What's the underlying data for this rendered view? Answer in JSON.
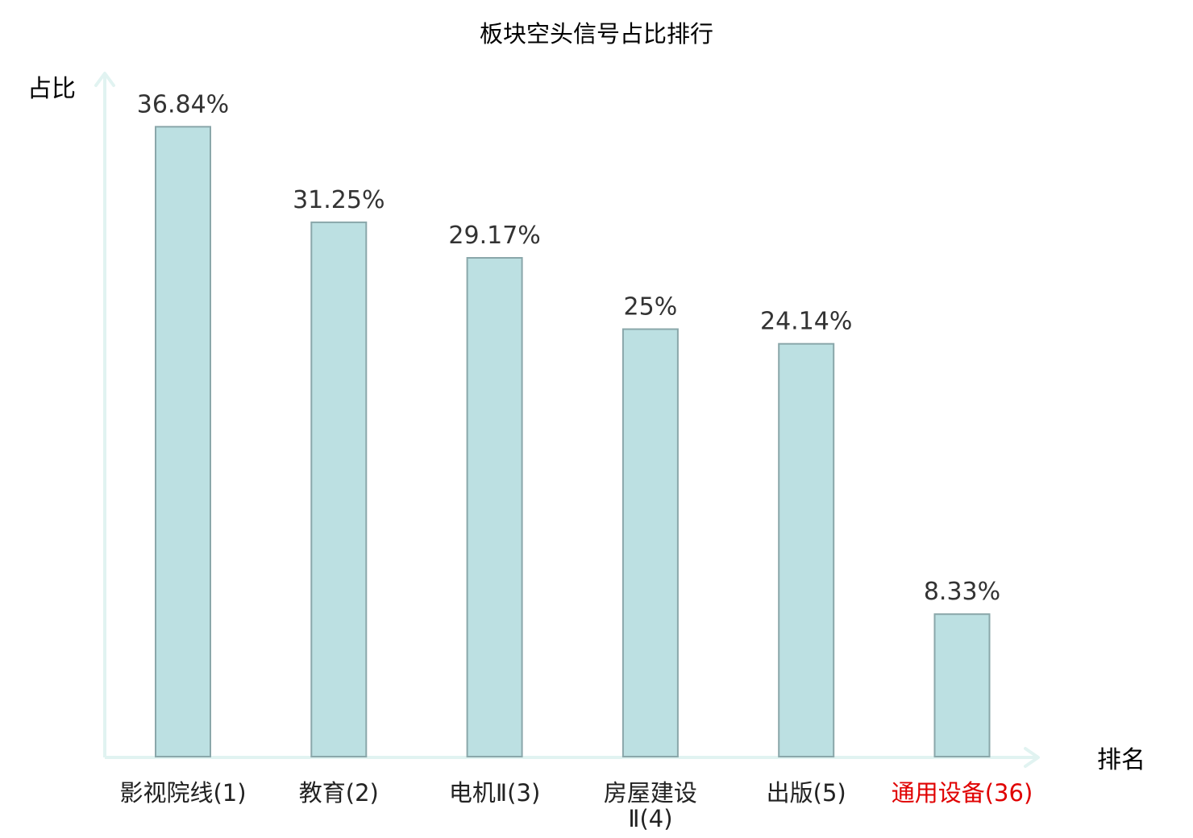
{
  "chart_data": {
    "type": "bar",
    "title": "板块空头信号占比排行",
    "ylabel": "占比",
    "xlabel": "排名",
    "ylim": [
      0,
      40
    ],
    "grid": false,
    "categories": [
      [
        "影视院线(1)"
      ],
      [
        "教育(2)"
      ],
      [
        "电机Ⅱ(3)"
      ],
      [
        "房屋建设",
        "Ⅱ(4)"
      ],
      [
        "出版(5)"
      ],
      [
        "通用设备(36)"
      ]
    ],
    "values": [
      36.84,
      31.25,
      29.17,
      25,
      24.14,
      8.33
    ],
    "value_labels": [
      "36.84%",
      "31.25%",
      "29.17%",
      "25%",
      "24.14%",
      "8.33%"
    ],
    "highlight_index": 5,
    "colors": {
      "bar_fill": "#bce0e2",
      "bar_stroke": "#8aa7aa",
      "axis": "#e1f3f1",
      "text": "#222222",
      "value_text": "#333333",
      "highlight": "#e00000"
    }
  }
}
